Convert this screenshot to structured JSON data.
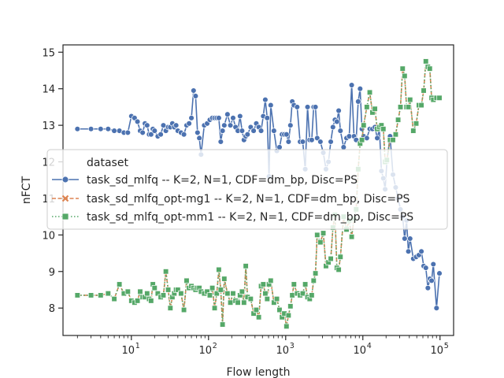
{
  "chart_data": {
    "type": "line",
    "xlabel": "Flow length",
    "ylabel": "nFCT",
    "x_scale": "log",
    "xlim": [
      1.3,
      150000
    ],
    "ylim": [
      7.25,
      15.2
    ],
    "y_ticks": [
      8,
      9,
      10,
      11,
      12,
      13,
      14,
      15
    ],
    "y_tick_labels": [
      "8",
      "9",
      "10",
      "11",
      "12",
      "13",
      "14",
      "15"
    ],
    "x_major_ticks": [
      10,
      100,
      1000,
      10000,
      100000
    ],
    "x_tick_labels": [
      {
        "base": "10",
        "exp": "1"
      },
      {
        "base": "10",
        "exp": "2"
      },
      {
        "base": "10",
        "exp": "3"
      },
      {
        "base": "10",
        "exp": "4"
      },
      {
        "base": "10",
        "exp": "5"
      }
    ],
    "grid": false,
    "legend": {
      "title": "dataset",
      "placement": "center-left"
    },
    "series": [
      {
        "name": "task_sd_mlfq -- K=2, N=1, CDF=dm_bp, Disc=PS",
        "color": "#4c72b0",
        "marker": "circle",
        "linestyle": "solid",
        "x": [
          2,
          3,
          4,
          5,
          6,
          7,
          8,
          9,
          10,
          11,
          12,
          13,
          14,
          15,
          16,
          17,
          18,
          19,
          20,
          22,
          24,
          26,
          28,
          30,
          32,
          34,
          36,
          38,
          40,
          44,
          48,
          52,
          56,
          60,
          64,
          68,
          72,
          76,
          80,
          88,
          96,
          104,
          112,
          120,
          128,
          136,
          144,
          152,
          160,
          176,
          192,
          208,
          224,
          240,
          256,
          272,
          288,
          304,
          320,
          352,
          384,
          416,
          448,
          480,
          512,
          544,
          576,
          608,
          640,
          704,
          768,
          832,
          896,
          960,
          1024,
          1088,
          1152,
          1216,
          1280,
          1408,
          1536,
          1664,
          1792,
          1920,
          2048,
          2176,
          2304,
          2432,
          2560,
          2816,
          3072,
          3328,
          3584,
          3840,
          4096,
          4352,
          4608,
          4864,
          5120,
          5632,
          6144,
          6656,
          7168,
          7680,
          8192,
          8704,
          9216,
          9728,
          10240,
          11264,
          12288,
          13312,
          14336,
          15360,
          16384,
          17408,
          18432,
          19456,
          20480,
          22528,
          24576,
          26624,
          28672,
          30720,
          32768,
          34816,
          36864,
          38912,
          40960,
          45056,
          49152,
          53248,
          57344,
          61440,
          65536,
          69632,
          73728,
          77824,
          81920,
          90112,
          98304
        ],
        "y": [
          12.9,
          12.9,
          12.9,
          12.9,
          12.85,
          12.85,
          12.8,
          12.8,
          13.25,
          13.2,
          13.1,
          12.85,
          12.8,
          13.05,
          13.0,
          12.75,
          12.75,
          12.9,
          12.85,
          12.7,
          12.75,
          13.0,
          12.85,
          12.95,
          12.95,
          13.05,
          12.95,
          13.0,
          12.85,
          12.8,
          12.75,
          13.0,
          13.05,
          13.2,
          13.95,
          13.8,
          12.8,
          12.65,
          12.2,
          13.0,
          13.05,
          13.15,
          13.2,
          13.2,
          13.2,
          13.2,
          12.55,
          12.85,
          13.0,
          13.3,
          13.0,
          13.2,
          12.95,
          12.85,
          13.25,
          12.85,
          12.6,
          12.7,
          12.75,
          12.95,
          12.85,
          13.05,
          12.95,
          12.85,
          13.25,
          13.7,
          13.2,
          11.6,
          13.55,
          12.85,
          12.3,
          12.4,
          12.75,
          12.75,
          12.75,
          12.55,
          13.0,
          13.65,
          13.55,
          13.5,
          12.55,
          12.55,
          11.8,
          13.5,
          12.6,
          12.6,
          13.5,
          13.5,
          12.65,
          12.55,
          12.25,
          11.8,
          12.0,
          12.55,
          12.95,
          13.15,
          13.1,
          13.4,
          12.85,
          12.4,
          12.65,
          12.7,
          14.1,
          12.7,
          12.6,
          13.65,
          14.0,
          12.9,
          12.7,
          12.65,
          12.9,
          12.9,
          12.95,
          12.65,
          12.9,
          11.75,
          11.55,
          11.25,
          12.0,
          12.7,
          11.65,
          11.3,
          11.0,
          10.7,
          10.5,
          9.9,
          10.4,
          9.55,
          9.9,
          9.35,
          9.4,
          9.45,
          9.55,
          9.15,
          9.1,
          8.55,
          8.8,
          8.75,
          9.2,
          8.0,
          8.95
        ]
      },
      {
        "name": "task_sd_mlfq_opt-mg1 -- K=2, N=1, CDF=dm_bp, Disc=PS",
        "color": "#dd8452",
        "marker": "x",
        "linestyle": "dashed",
        "x": [
          2,
          3,
          4,
          5,
          6,
          7,
          8,
          9,
          10,
          11,
          12,
          13,
          14,
          15,
          16,
          17,
          18,
          19,
          20,
          22,
          24,
          26,
          28,
          30,
          32,
          34,
          36,
          38,
          40,
          44,
          48,
          52,
          56,
          60,
          64,
          68,
          72,
          76,
          80,
          88,
          96,
          104,
          112,
          120,
          128,
          136,
          144,
          152,
          160,
          176,
          192,
          208,
          224,
          240,
          256,
          272,
          288,
          304,
          320,
          352,
          384,
          416,
          448,
          480,
          512,
          544,
          576,
          608,
          640,
          704,
          768,
          832,
          896,
          960,
          1024,
          1088,
          1152,
          1216,
          1280,
          1408,
          1536,
          1664,
          1792,
          1920,
          2048,
          2176,
          2304,
          2432,
          2560,
          2816,
          3072,
          3328,
          3584,
          3840,
          4096,
          4352,
          4608,
          4864,
          5120,
          5632,
          6144,
          6656,
          7168,
          7680,
          8192,
          8704,
          9216,
          9728,
          10240,
          11264,
          12288,
          13312,
          14336,
          15360,
          16384,
          17408,
          18432,
          19456,
          20480,
          22528,
          24576,
          26624,
          28672,
          30720,
          32768,
          34816,
          36864,
          38912,
          40960,
          45056,
          49152,
          53248,
          57344,
          61440,
          65536,
          69632,
          73728,
          77824,
          81920,
          90112,
          98304
        ],
        "y": [
          8.35,
          8.35,
          8.35,
          8.4,
          8.25,
          8.65,
          8.4,
          8.45,
          8.2,
          8.15,
          8.2,
          8.45,
          8.3,
          8.3,
          8.4,
          8.25,
          8.2,
          8.65,
          8.55,
          8.4,
          8.3,
          8.35,
          9.0,
          8.5,
          8.0,
          8.3,
          8.4,
          8.5,
          8.5,
          8.4,
          7.95,
          8.75,
          8.55,
          8.6,
          8.55,
          8.5,
          8.55,
          8.55,
          8.45,
          8.4,
          8.45,
          8.35,
          8.55,
          8.0,
          8.4,
          9.05,
          8.5,
          7.55,
          8.8,
          8.4,
          8.15,
          8.4,
          8.2,
          8.15,
          8.35,
          8.45,
          8.15,
          9.15,
          8.3,
          8.25,
          7.85,
          7.95,
          7.75,
          8.6,
          8.65,
          8.4,
          8.25,
          8.65,
          8.75,
          8.15,
          8.25,
          7.95,
          7.75,
          7.85,
          7.5,
          7.8,
          8.05,
          8.35,
          8.65,
          8.4,
          8.35,
          8.4,
          8.65,
          8.3,
          8.25,
          8.35,
          8.75,
          8.95,
          10.0,
          9.8,
          10.05,
          9.15,
          9.25,
          9.35,
          10.2,
          10.55,
          9.1,
          9.05,
          9.4,
          10.5,
          10.15,
          10.4,
          9.95,
          10.45,
          10.7,
          11.8,
          12.5,
          12.6,
          13.0,
          13.5,
          13.9,
          13.35,
          13.45,
          12.9,
          12.95,
          13.0,
          12.9,
          12.0,
          12.05,
          12.6,
          12.6,
          12.75,
          13.15,
          13.5,
          14.55,
          14.35,
          13.5,
          13.5,
          13.7,
          12.85,
          13.05,
          13.55,
          13.55,
          13.95,
          14.75,
          14.6,
          14.55,
          13.75,
          13.7,
          13.75,
          13.75
        ]
      },
      {
        "name": "task_sd_mlfq_opt-mm1 -- K=2, N=1, CDF=dm_bp, Disc=PS",
        "color": "#55a868",
        "marker": "square",
        "linestyle": "dotted",
        "x": [
          2,
          3,
          4,
          5,
          6,
          7,
          8,
          9,
          10,
          11,
          12,
          13,
          14,
          15,
          16,
          17,
          18,
          19,
          20,
          22,
          24,
          26,
          28,
          30,
          32,
          34,
          36,
          38,
          40,
          44,
          48,
          52,
          56,
          60,
          64,
          68,
          72,
          76,
          80,
          88,
          96,
          104,
          112,
          120,
          128,
          136,
          144,
          152,
          160,
          176,
          192,
          208,
          224,
          240,
          256,
          272,
          288,
          304,
          320,
          352,
          384,
          416,
          448,
          480,
          512,
          544,
          576,
          608,
          640,
          704,
          768,
          832,
          896,
          960,
          1024,
          1088,
          1152,
          1216,
          1280,
          1408,
          1536,
          1664,
          1792,
          1920,
          2048,
          2176,
          2304,
          2432,
          2560,
          2816,
          3072,
          3328,
          3584,
          3840,
          4096,
          4352,
          4608,
          4864,
          5120,
          5632,
          6144,
          6656,
          7168,
          7680,
          8192,
          8704,
          9216,
          9728,
          10240,
          11264,
          12288,
          13312,
          14336,
          15360,
          16384,
          17408,
          18432,
          19456,
          20480,
          22528,
          24576,
          26624,
          28672,
          30720,
          32768,
          34816,
          36864,
          38912,
          40960,
          45056,
          49152,
          53248,
          57344,
          61440,
          65536,
          69632,
          73728,
          77824,
          81920,
          90112,
          98304
        ],
        "y": [
          8.35,
          8.35,
          8.35,
          8.4,
          8.25,
          8.65,
          8.4,
          8.45,
          8.2,
          8.15,
          8.2,
          8.45,
          8.3,
          8.3,
          8.4,
          8.25,
          8.2,
          8.65,
          8.55,
          8.4,
          8.3,
          8.35,
          9.0,
          8.5,
          8.0,
          8.3,
          8.4,
          8.5,
          8.5,
          8.4,
          7.95,
          8.75,
          8.55,
          8.6,
          8.55,
          8.5,
          8.55,
          8.55,
          8.45,
          8.4,
          8.45,
          8.35,
          8.55,
          8.0,
          8.4,
          9.05,
          8.5,
          7.55,
          8.8,
          8.4,
          8.15,
          8.4,
          8.2,
          8.15,
          8.35,
          8.45,
          8.15,
          9.15,
          8.3,
          8.25,
          7.85,
          7.95,
          7.75,
          8.6,
          8.65,
          8.4,
          8.25,
          8.65,
          8.75,
          8.15,
          8.25,
          7.95,
          7.75,
          7.85,
          7.5,
          7.8,
          8.05,
          8.35,
          8.65,
          8.4,
          8.35,
          8.4,
          8.65,
          8.3,
          8.25,
          8.35,
          8.75,
          8.95,
          10.0,
          9.8,
          10.05,
          9.15,
          9.25,
          9.35,
          10.2,
          10.55,
          9.1,
          9.05,
          9.4,
          10.5,
          10.15,
          10.4,
          9.95,
          10.45,
          10.7,
          11.8,
          12.5,
          12.6,
          13.0,
          13.5,
          13.9,
          13.35,
          13.45,
          12.9,
          12.95,
          13.0,
          12.9,
          12.0,
          12.05,
          12.6,
          12.6,
          12.75,
          13.15,
          13.5,
          14.55,
          14.35,
          13.5,
          13.5,
          13.7,
          12.85,
          13.05,
          13.55,
          13.55,
          13.95,
          14.75,
          14.6,
          14.55,
          13.75,
          13.7,
          13.75,
          13.75
        ]
      }
    ]
  }
}
